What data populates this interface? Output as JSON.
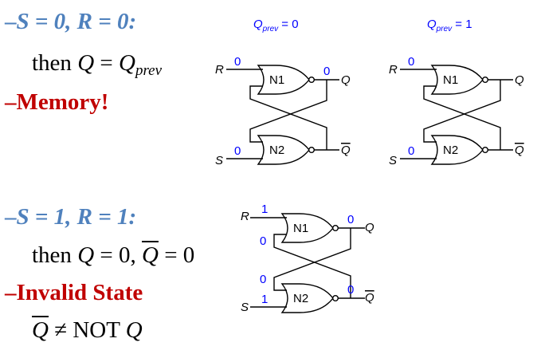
{
  "case1": {
    "heading": "S = 0, R = 0:",
    "then_prefix": "then ",
    "then_q": "Q",
    "then_eq": " = ",
    "then_qprev": "Q",
    "then_prev_sub": "prev",
    "result": "Memory!"
  },
  "case2": {
    "heading": "S = 1, R = 1:",
    "then_prefix": "then ",
    "then_q": "Q",
    "then_mid": " = 0, ",
    "then_qbar": "Q",
    "then_end": " = 0",
    "result": "Invalid State",
    "note_qbar": "Q",
    "note_rest": " ≠ NOT ",
    "note_q": "Q"
  },
  "diagrams": [
    {
      "title_q": "Q",
      "title_sub": "prev",
      "title_val": " = 0",
      "r_label": "R",
      "s_label": "S",
      "q_label": "Q",
      "qbar_label": "Q",
      "gate1": "N1",
      "gate2": "N2",
      "r_value": "0",
      "s_value": "0",
      "q_value": "0",
      "qbar_value": "",
      "fb_top_value": "",
      "fb_bot_value": ""
    },
    {
      "title_q": "Q",
      "title_sub": "prev",
      "title_val": " = 1",
      "r_label": "R",
      "s_label": "S",
      "q_label": "Q",
      "qbar_label": "Q",
      "gate1": "N1",
      "gate2": "N2",
      "r_value": "0",
      "s_value": "0",
      "q_value": "",
      "qbar_value": "",
      "fb_top_value": "",
      "fb_bot_value": ""
    },
    {
      "title_q": "",
      "title_sub": "",
      "title_val": "",
      "r_label": "R",
      "s_label": "S",
      "q_label": "Q",
      "qbar_label": "Q",
      "gate1": "N1",
      "gate2": "N2",
      "r_value": "1",
      "s_value": "1",
      "q_value": "0",
      "qbar_value": "0",
      "fb_top_value": "0",
      "fb_bot_value": "0"
    }
  ],
  "colors": {
    "heading": "#4f81bd",
    "emphasis": "#c00000",
    "values": "#0000ff"
  }
}
